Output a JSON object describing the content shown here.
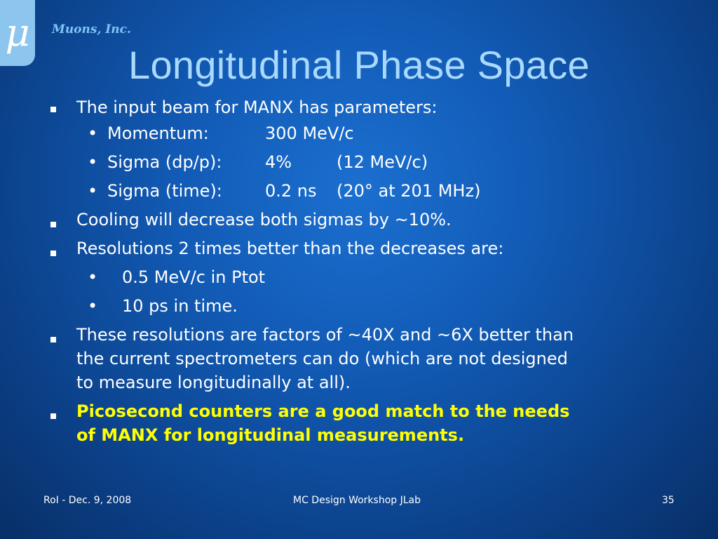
{
  "logo_glyph": "μ",
  "company": "Muons, Inc.",
  "title": "Longitudinal Phase Space",
  "bullets": {
    "b1": "The input beam for MANX has parameters:",
    "sub1": {
      "dot": "•",
      "label": "Momentum:",
      "value": "300 MeV/c",
      "extra": ""
    },
    "sub2": {
      "dot": "•",
      "label": "Sigma (dp/p):",
      "value": "4%",
      "extra": "(12 MeV/c)"
    },
    "sub3": {
      "dot": "•",
      "label": "Sigma (time):",
      "value": "0.2 ns",
      "extra": "(20° at 201 MHz)"
    },
    "b2": "Cooling will decrease both sigmas by ~10%.",
    "b3": "Resolutions 2 times better than the decreases are:",
    "sub4": {
      "dot": "•",
      "text": "0.5 MeV/c in Ptot"
    },
    "sub5": {
      "dot": "•",
      "text": "10 ps in time."
    },
    "b4_line1": "These resolutions are factors of ~40X and ~6X better than",
    "b4_line2": "the current spectrometers can do (which are not designed",
    "b4_line3": "to measure longitudinally at all).",
    "b5_line1": "Picosecond counters are a good match to the needs",
    "b5_line2": "of MANX for longitudinal measurements."
  },
  "footer": {
    "left": "RoI - Dec. 9, 2008",
    "center": "MC Design Workshop JLab",
    "page": "35"
  }
}
